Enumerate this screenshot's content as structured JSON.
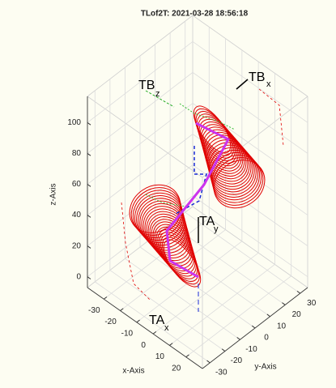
{
  "chart_data": {
    "type": "line3d",
    "title": "TLof2T: 2021-03-28 18:56:18",
    "xlabel": "x-Axis",
    "ylabel": "y-Axis",
    "zlabel": "z-Axis",
    "xlim": [
      -40,
      30
    ],
    "ylim": [
      -35,
      35
    ],
    "zlim": [
      -7,
      117
    ],
    "xticks": [
      -30,
      -20,
      -10,
      0,
      10,
      20
    ],
    "yticks": [
      -30,
      -20,
      -10,
      0,
      10,
      20,
      30
    ],
    "zticks": [
      0,
      20,
      40,
      60,
      80,
      100
    ],
    "grid": true,
    "annotations": [
      {
        "text": "TB",
        "subscript": "z"
      },
      {
        "text": "TB",
        "subscript": "x"
      },
      {
        "text": "TA",
        "subscript": "y"
      },
      {
        "text": "TA",
        "subscript": "x"
      }
    ]
  }
}
